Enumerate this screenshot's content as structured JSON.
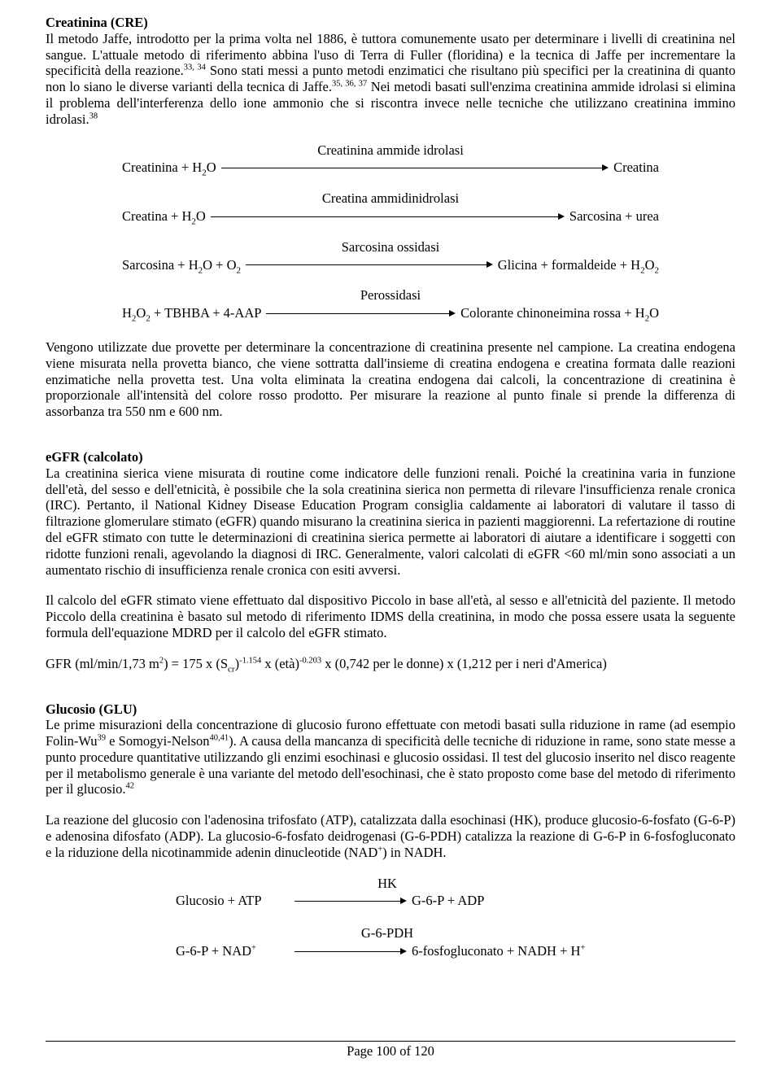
{
  "sections": {
    "cre": {
      "heading": "Creatinina (CRE)",
      "body_html": "Il metodo Jaffe, introdotto per la prima volta nel 1886, è tuttora comunemente usato per determinare i livelli di creatinina nel sangue. L'attuale metodo di riferimento abbina l'uso di Terra di Fuller (floridina) e la tecnica di Jaffe per incrementare la specificità della reazione.<span class=\"sup\">33, 34</span> Sono stati messi a punto metodi enzimatici che risultano più specifici per la creatinina di quanto non lo siano le diverse varianti della tecnica di Jaffe.<span class=\"sup\">35, 36, 37</span> Nei metodi basati sull'enzima creatinina ammide idrolasi si elimina il problema dell'interferenza dello ione ammonio che si riscontra invece nelle tecniche che utilizzano creatinina immino idrolasi.<span class=\"sup\">38</span>"
    },
    "cre_reactions": [
      {
        "enzyme": "Creatinina ammide idrolasi",
        "left_html": "Creatinina + H<span class=\"sub\">2</span>O",
        "right_html": "Creatina"
      },
      {
        "enzyme": "Creatina ammidinidrolasi",
        "left_html": "Creatina + H<span class=\"sub\">2</span>O",
        "right_html": "Sarcosina + urea"
      },
      {
        "enzyme": "Sarcosina ossidasi",
        "left_html": "Sarcosina + H<span class=\"sub\">2</span>O + O<span class=\"sub\">2</span>",
        "right_html": "Glicina + formaldeide + H<span class=\"sub\">2</span>O<span class=\"sub\">2</span>"
      },
      {
        "enzyme": "Perossidasi",
        "left_html": "H<span class=\"sub\">2</span>O<span class=\"sub\">2</span> + TBHBA + 4-AAP",
        "right_html": "Colorante chinoneimina rossa + H<span class=\"sub\">2</span>O"
      }
    ],
    "cre_after": "Vengono utilizzate due provette per determinare la concentrazione di creatinina presente nel campione. La creatina endogena viene misurata nella provetta bianco, che viene sottratta dall'insieme di creatina endogena e creatina formata dalle reazioni enzimatiche nella provetta test. Una volta eliminata la creatina endogena dai calcoli, la concentrazione di creatinina è proporzionale all'intensità del colore rosso prodotto. Per misurare la reazione al punto finale si prende la differenza di assorbanza tra 550 nm e 600 nm.",
    "egfr": {
      "heading": "eGFR (calcolato)",
      "body": "La creatinina sierica viene misurata di routine come indicatore delle funzioni renali. Poiché la creatinina varia in funzione dell'età, del sesso e dell'etnicità, è possibile che la sola creatinina sierica non permetta di rilevare l'insufficienza renale cronica (IRC). Pertanto, il National Kidney Disease Education Program consiglia caldamente ai laboratori di valutare il tasso di filtrazione glomerulare stimato (eGFR) quando misurano la creatinina sierica in pazienti maggiorenni. La refertazione di routine del eGFR stimato con tutte le determinazioni di creatinina sierica permette ai laboratori di aiutare a identificare i soggetti con ridotte funzioni renali, agevolando la diagnosi di IRC. Generalmente, valori calcolati di eGFR <60 ml/min sono associati a un aumentato rischio di insufficienza renale cronica con esiti avversi.",
      "body2": "Il calcolo del eGFR stimato viene effettuato dal dispositivo Piccolo in base all'età, al sesso e all'etnicità del paziente. Il metodo Piccolo della creatinina è basato sul metodo di riferimento IDMS della creatinina, in modo che possa essere usata la seguente formula dell'equazione MDRD per il calcolo del eGFR stimato.",
      "formula_html": "GFR (ml/min/1,73 m<span class=\"sup\">2</span>) = 175 x (S<span class=\"sub\">cr</span>)<span class=\"sup\">-1.154</span> x (età)<span class=\"sup\">-0.203</span> x (0,742 per le donne) x (1,212 per i neri d'America)"
    },
    "glu": {
      "heading": "Glucosio (GLU)",
      "body_html": "Le prime misurazioni della concentrazione di glucosio furono effettuate con metodi basati sulla riduzione in rame (ad esempio Folin-Wu<span class=\"sup\">39</span> e Somogyi-Nelson<span class=\"sup\">40,41</span>). A causa della mancanza di specificità delle tecniche di riduzione in rame, sono state messe a punto procedure quantitative utilizzando gli enzimi esochinasi e glucosio ossidasi. Il test del glucosio inserito nel disco reagente per il metabolismo generale è una variante del metodo dell'esochinasi, che è stato proposto come base del metodo di riferimento per il glucosio.<span class=\"sup\">42</span>",
      "body2_html": "La reazione del glucosio con l'adenosina trifosfato (ATP), catalizzata dalla esochinasi (HK), produce glucosio-6-fosfato (G-6-P) e adenosina difosfato (ADP). La glucosio-6-fosfato deidrogenasi (G-6-PDH) catalizza la reazione di G-6-P in 6-fosfogluconato e la riduzione della nicotinammide adenin dinucleotide (NAD<span class=\"sup\">+</span>) in NADH."
    },
    "glu_reactions": [
      {
        "enzyme": "HK",
        "left_html": "Glucosio + ATP",
        "right_html": "G-6-P + ADP"
      },
      {
        "enzyme": "G-6-PDH",
        "left_html": "G-6-P + NAD<span class=\"sup\">+</span>",
        "right_html": "6-fosfogluconato + NADH + H<span class=\"sup\">+</span>"
      }
    ]
  },
  "footer": "Page 100 of 120"
}
